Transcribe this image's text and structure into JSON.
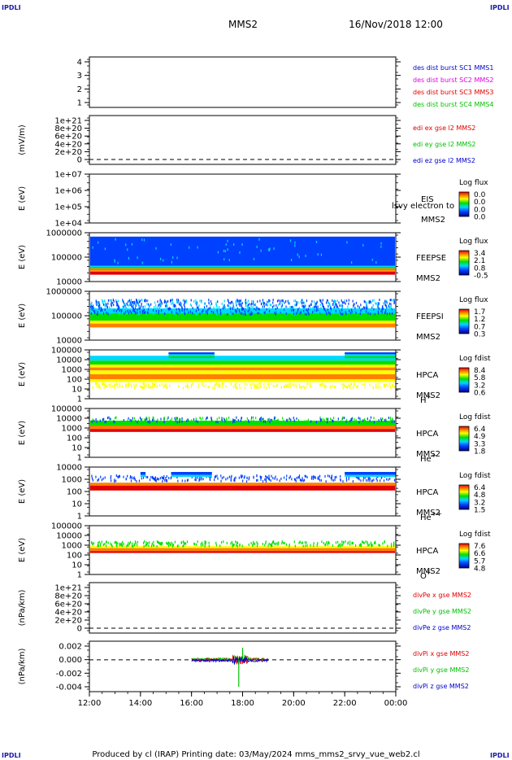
{
  "corner_label": "IPDLI",
  "header": {
    "spacecraft": "MMS2",
    "datetime": "16/Nov/2018 12:00"
  },
  "footer": "Produced by cl (IRAP)   Printing date: 03/May/2024   mms_mms2_srvy_vue_web2.cl",
  "chart_data": {
    "type": "heatmap",
    "x_axis": {
      "ticks": [
        "12:00",
        "14:00",
        "16:00",
        "18:00",
        "20:00",
        "22:00",
        "00:00"
      ]
    },
    "colors": {
      "red": "#e00000",
      "green": "#00c000",
      "blue": "#0000cc",
      "magenta": "#e000e0"
    },
    "panels": [
      {
        "id": "dist",
        "type": "legend-only",
        "yticks": [
          "4",
          "3",
          "2",
          "1"
        ],
        "legend": [
          {
            "text": "des dist burst SC1 MMS1",
            "color": "#0000cc"
          },
          {
            "text": "des dist burst SC2 MMS2",
            "color": "#e000e0"
          },
          {
            "text": "des dist burst SC3 MMS3",
            "color": "#e00000"
          },
          {
            "text": "des dist burst SC4 MMS4",
            "color": "#00c000"
          }
        ]
      },
      {
        "id": "edi",
        "type": "line",
        "ylabel": "(mV/m)",
        "yticks": [
          "1e+21",
          "8e+20",
          "6e+20",
          "4e+20",
          "2e+20",
          "0"
        ],
        "dashed_zero": true,
        "legend": [
          {
            "text": "edi ex gse l2 MMS2",
            "color": "#e00000"
          },
          {
            "text": "edi ey gse l2 MMS2",
            "color": "#00c000"
          },
          {
            "text": "edi ez gse l2 MMS2",
            "color": "#0000cc"
          }
        ]
      },
      {
        "id": "eis",
        "type": "spectrogram",
        "ylabel": "E (eV)",
        "yticks": [
          "1e+07",
          "1e+06",
          "1e+05",
          "1e+04"
        ],
        "side": [
          "EIS",
          "MMS2"
        ],
        "overlay": "lsvy electron to",
        "colorbar": {
          "title": "Log flux",
          "ticks": [
            "0.0",
            "0.0",
            "0.0",
            "0.0"
          ]
        }
      },
      {
        "id": "feepse",
        "type": "spectrogram",
        "ylabel": "E (eV)",
        "yticks": [
          "1000000",
          "100000",
          "10000"
        ],
        "side": [
          "FEEPSE",
          "MMS2"
        ],
        "colorbar": {
          "title": "Log flux",
          "ticks": [
            "3.4",
            "2.1",
            "0.8",
            "-0.5"
          ]
        },
        "data_span": [
          "12:00",
          "00:00"
        ]
      },
      {
        "id": "feepsi",
        "type": "spectrogram",
        "ylabel": "E (eV)",
        "yticks": [
          "1000000",
          "100000",
          "10000"
        ],
        "side": [
          "FEEPSI",
          "MMS2"
        ],
        "colorbar": {
          "title": "Log flux",
          "ticks": [
            "1.7",
            "1.2",
            "0.7",
            "0.3"
          ]
        },
        "data_span": [
          "12:00",
          "00:00"
        ]
      },
      {
        "id": "hpca-h",
        "type": "spectrogram",
        "ylabel": "E (eV)",
        "yticks": [
          "100000",
          "10000",
          "1000",
          "100",
          "10",
          "1"
        ],
        "side": [
          "HPCA",
          "MMS2"
        ],
        "species": "H",
        "species_sup": "+",
        "colorbar": {
          "title": "Log fdist",
          "ticks": [
            "8.4",
            "5.8",
            "3.2",
            "0.6"
          ]
        },
        "data_span": [
          "12:00",
          "00:00"
        ]
      },
      {
        "id": "hpca-he",
        "type": "spectrogram",
        "ylabel": "E (eV)",
        "yticks": [
          "100000",
          "10000",
          "1000",
          "100",
          "10",
          "1"
        ],
        "side": [
          "HPCA",
          "MMS2"
        ],
        "species": "He",
        "species_sup": "+",
        "colorbar": {
          "title": "Log fdist",
          "ticks": [
            "6.4",
            "4.9",
            "3.3",
            "1.8"
          ]
        },
        "data_span": [
          "12:00",
          "00:00"
        ]
      },
      {
        "id": "hpca-hepp",
        "type": "spectrogram",
        "ylabel": "E (eV)",
        "yticks": [
          "10000",
          "1000",
          "100",
          "10",
          "1"
        ],
        "side": [
          "HPCA",
          "MMS2"
        ],
        "species": "He",
        "species_sup": "++",
        "colorbar": {
          "title": "Log fdist",
          "ticks": [
            "6.4",
            "4.8",
            "3.2",
            "1.5"
          ]
        },
        "data_span": [
          "12:00",
          "00:00"
        ]
      },
      {
        "id": "hpca-o",
        "type": "spectrogram",
        "ylabel": "E (eV)",
        "yticks": [
          "100000",
          "10000",
          "1000",
          "100",
          "10",
          "1"
        ],
        "side": [
          "HPCA",
          "MMS2"
        ],
        "species": "O",
        "species_sup": "+",
        "colorbar": {
          "title": "Log fdist",
          "ticks": [
            "7.6",
            "6.6",
            "5.7",
            "4.8"
          ]
        },
        "data_span": [
          "12:00",
          "00:00"
        ]
      },
      {
        "id": "divpe",
        "type": "line",
        "ylabel": "(nPa/km)",
        "yticks": [
          "1e+21",
          "8e+20",
          "6e+20",
          "4e+20",
          "2e+20",
          "0"
        ],
        "dashed_zero": true,
        "legend": [
          {
            "text": "divPe x gse MMS2",
            "color": "#e00000"
          },
          {
            "text": "divPe y gse MMS2",
            "color": "#00c000"
          },
          {
            "text": "divPe z gse MMS2",
            "color": "#0000cc"
          }
        ]
      },
      {
        "id": "divpi",
        "type": "line",
        "ylabel": "(nPa/km)",
        "yticks": [
          "0.002",
          "0.000",
          "-0.002",
          "-0.004"
        ],
        "ylim": [
          -0.0048,
          0.0028
        ],
        "dashed_zero": true,
        "data_span": [
          "16:00",
          "19:00"
        ],
        "legend": [
          {
            "text": "divPi x gse MMS2",
            "color": "#e00000"
          },
          {
            "text": "divPi y gse MMS2",
            "color": "#00c000"
          },
          {
            "text": "divPi z gse MMS2",
            "color": "#0000cc"
          }
        ]
      }
    ]
  }
}
